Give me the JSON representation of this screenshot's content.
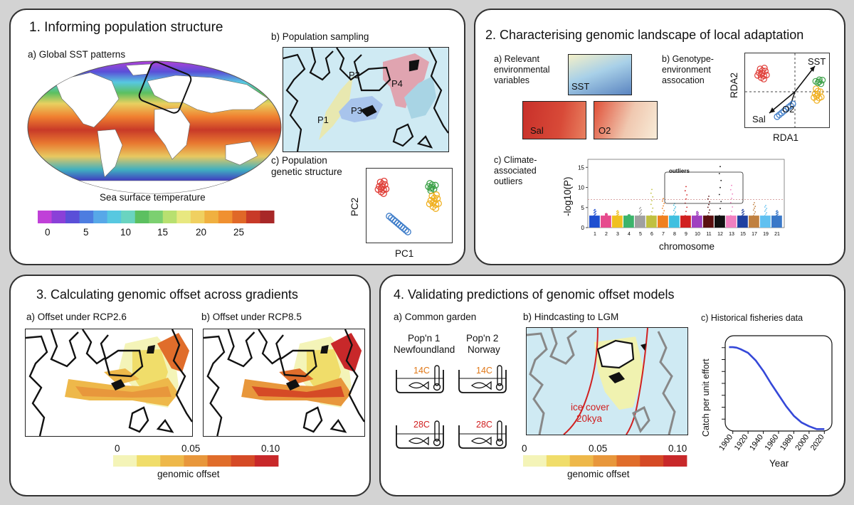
{
  "panel1": {
    "title": "1. Informing population structure",
    "a_label": "a) Global SST patterns",
    "colorbar_label": "Sea surface temperature",
    "colorbar_ticks": [
      "0",
      "5",
      "10",
      "15",
      "20",
      "25"
    ],
    "b_label": "b) Population sampling",
    "populations": [
      "P1",
      "P2",
      "P3",
      "P4"
    ],
    "c_label_line1": "c) Population",
    "c_label_line2": "genetic structure",
    "pca_xlabel": "PC1",
    "pca_ylabel": "PC2"
  },
  "panel2": {
    "title": "2. Characterising genomic landscape of local adaptation",
    "a_label_line1": "a) Relevant",
    "a_label_line2": "environmental",
    "a_label_line3": "variables",
    "var_sst": "SST",
    "var_sal": "Sal",
    "var_o2": "O2",
    "b_label_line1": "b) Genotype-",
    "b_label_line2": "environment",
    "b_label_line3": "assocation",
    "rda_xlabel": "RDA1",
    "rda_ylabel": "RDA2",
    "c_label_line1": "c) Climate-",
    "c_label_line2": "associated",
    "c_label_line3": "outliers",
    "outliers_box": "outliers"
  },
  "panel3": {
    "title": "3. Calculating genomic offset across gradients",
    "a_label": "a) Offset under RCP2.6",
    "b_label": "b) Offset under RCP8.5",
    "colorbar_ticks": [
      "0",
      "0.05",
      "0.10"
    ],
    "colorbar_label": "genomic offset"
  },
  "panel4": {
    "title": "4. Validating predictions of genomic offset models",
    "a_label": "a) Common garden",
    "pop1_line1": "Pop'n 1",
    "pop1_line2": "Newfoundland",
    "pop2_line1": "Pop'n 2",
    "pop2_line2": "Norway",
    "temp_low": "14C",
    "temp_high": "28C",
    "b_label": "b) Hindcasting to LGM",
    "ice_line1": "ice cover",
    "ice_line2": "20kya",
    "colorbar_ticks": [
      "0",
      "0.05",
      "0.10"
    ],
    "colorbar_label": "genomic offset",
    "c_label": "c) Historical fisheries data"
  },
  "colors": {
    "ocean": "#cfeaf3",
    "offset_scale": [
      "#f4f4b8",
      "#f0dd6a",
      "#eeb84a",
      "#e8973c",
      "#e06d2b",
      "#d54a26",
      "#c8282a"
    ],
    "pop_red": "#e0403a",
    "pop_green": "#3ea24a",
    "pop_yellow": "#f0b020",
    "pop_blue": "#3a7ac8",
    "cpue_line": "#3548d8"
  },
  "manhattan": {
    "xlabel": "chromosome",
    "ylabel": "-log10(P)",
    "chromosomes": [
      "1",
      "2",
      "3",
      "4",
      "5",
      "6",
      "7",
      "8",
      "9",
      "10",
      "11",
      "12",
      "13",
      "15",
      "17",
      "19",
      "21"
    ],
    "chrom_colors": [
      "#1f4fd0",
      "#e64b8d",
      "#f0c020",
      "#3cb46b",
      "#a0a0a0",
      "#c0c040",
      "#f08020",
      "#40c0e0",
      "#d02020",
      "#a040c0",
      "#5a1010",
      "#111111",
      "#f080c0",
      "#2040a0",
      "#c08040",
      "#60c0f0",
      "#3a78c8"
    ],
    "peak_values": [
      4.5,
      3.5,
      4.2,
      3.2,
      5.0,
      9.5,
      7.2,
      6.0,
      10.2,
      4.0,
      7.8,
      15.2,
      10.5,
      4.5,
      6.2,
      5.5,
      4.2
    ],
    "yticks": [
      0,
      5,
      10,
      15
    ],
    "ylim": [
      0,
      17
    ],
    "threshold": 7
  },
  "chart_data": {
    "type": "line",
    "title": "c) Historical fisheries data",
    "xlabel": "Year",
    "ylabel": "Catch per unit effort",
    "xticks": [
      1900,
      1920,
      1940,
      1960,
      1980,
      2000,
      2020
    ],
    "xlim": [
      1890,
      2030
    ],
    "x": [
      1895,
      1900,
      1905,
      1910,
      1920,
      1930,
      1940,
      1950,
      1960,
      1970,
      1980,
      1990,
      2000,
      2010,
      2020
    ],
    "series": [
      {
        "values": [
          0.88,
          0.88,
          0.875,
          0.86,
          0.82,
          0.74,
          0.63,
          0.5,
          0.38,
          0.26,
          0.16,
          0.09,
          0.05,
          0.02,
          0.02
        ]
      }
    ],
    "ylim": [
      0,
      1
    ],
    "grid": false
  }
}
